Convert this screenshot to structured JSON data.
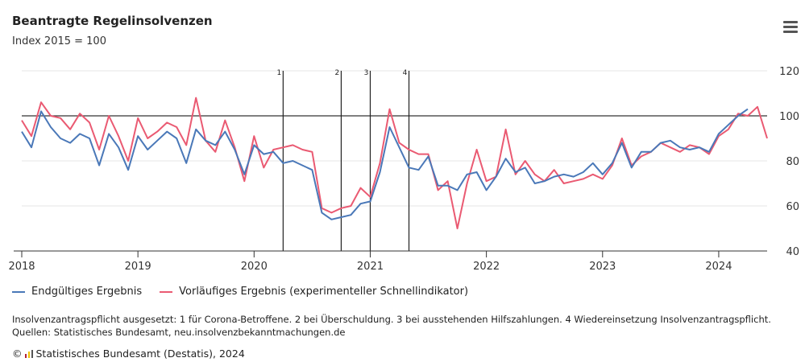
{
  "header": {
    "title": "Beantragte Regelinsolvenzen",
    "subtitle": "Index 2015 = 100"
  },
  "legend": {
    "final_label": "Endgültiges Ergebnis",
    "prelim_label": "Vorläufiges Ergebnis (experimenteller Schnellindikator)"
  },
  "footer": {
    "note_line1": "Insolvenzantragspflicht ausgesetzt: 1 für Corona-Betroffene. 2 bei Überschuldung. 3 bei ausstehenden Hilfszahlungen. 4 Wiedereinsetzung Insolvenzantragspflicht.",
    "note_line2": "Quellen: Statistisches Bundesamt, neu.insolvenzbekanntmachungen.de",
    "copyright": "Statistisches Bundesamt (Destatis), 2024"
  },
  "colors": {
    "final": "#4a78b8",
    "prelim": "#ea5a72",
    "reference_line": "#333333",
    "grid": "#e6e6e6",
    "logo": [
      "#b22234",
      "#f2c200",
      "#555555"
    ]
  },
  "icons": {
    "menu": "hamburger-menu-icon",
    "copyright": "copyright-icon",
    "logo": "destatis-logo-icon"
  },
  "chart_data": {
    "type": "line",
    "x_start": "2018-01",
    "x_end": "2024-06",
    "x_ticks": [
      "2018",
      "2019",
      "2020",
      "2021",
      "2022",
      "2023",
      "2024"
    ],
    "y_ticks": [
      40,
      60,
      80,
      100,
      120
    ],
    "ylim": [
      40,
      120
    ],
    "reference_value": 100,
    "grid": "horizontal",
    "legend_position": "bottom-left",
    "events": [
      {
        "label": "1",
        "date": "2020-04"
      },
      {
        "label": "2",
        "date": "2020-10"
      },
      {
        "label": "3",
        "date": "2021-01"
      },
      {
        "label": "4",
        "date": "2021-05"
      }
    ],
    "series": [
      {
        "name": "Endgültiges Ergebnis",
        "start": "2018-01",
        "values": [
          93,
          86,
          102,
          95,
          90,
          88,
          92,
          90,
          78,
          92,
          86,
          76,
          91,
          85,
          89,
          93,
          90,
          79,
          94,
          89,
          87,
          93,
          85,
          74,
          87,
          83,
          84,
          79,
          80,
          78,
          76,
          57,
          54,
          55,
          56,
          61,
          62,
          75,
          95,
          86,
          77,
          76,
          82,
          69,
          69,
          67,
          74,
          75,
          67,
          73,
          81,
          75,
          77,
          70,
          71,
          73,
          74,
          73,
          75,
          79,
          74,
          79,
          88,
          77,
          84,
          84,
          88,
          89,
          86,
          85,
          86,
          84,
          92,
          96,
          100,
          103
        ]
      },
      {
        "name": "Vorläufiges Ergebnis (experimenteller Schnellindikator)",
        "start": "2018-01",
        "values": [
          98,
          91,
          106,
          100,
          99,
          94,
          101,
          97,
          85,
          100,
          91,
          80,
          99,
          90,
          93,
          97,
          95,
          87,
          108,
          89,
          84,
          98,
          86,
          71,
          91,
          77,
          85,
          86,
          87,
          85,
          84,
          59,
          57,
          59,
          60,
          68,
          64,
          79,
          103,
          88,
          85,
          83,
          83,
          67,
          71,
          50,
          70,
          85,
          71,
          73,
          94,
          74,
          80,
          74,
          71,
          76,
          70,
          71,
          72,
          74,
          72,
          78,
          90,
          78,
          82,
          84,
          88,
          86,
          84,
          87,
          86,
          83,
          91,
          94,
          101,
          100,
          104,
          90
        ]
      }
    ]
  }
}
